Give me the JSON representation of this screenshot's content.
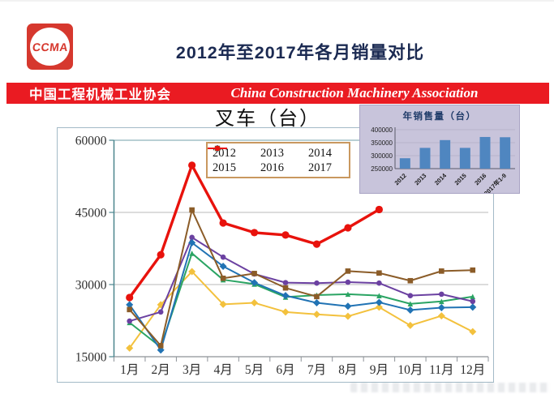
{
  "logo": {
    "text": "CCMA",
    "color": "#d6382e"
  },
  "header": {
    "title": "2012年至2017年各月销量对比",
    "color": "#1b2a52"
  },
  "banner": {
    "bg": "#ea1b22",
    "left_text": "中国工程机械工业协会",
    "right_text": "China Construction Machinery Association"
  },
  "chart_data": [
    {
      "type": "line",
      "title": "叉车（台）",
      "x": [
        "1月",
        "2月",
        "3月",
        "4月",
        "5月",
        "6月",
        "7月",
        "8月",
        "9月",
        "10月",
        "11月",
        "12月"
      ],
      "ylim": [
        15000,
        60000
      ],
      "yticks": [
        15000,
        30000,
        45000,
        60000
      ],
      "grid": true,
      "legend_position": "top-inside",
      "series": [
        {
          "name": "2012",
          "color": "#f3c13d",
          "marker": "diamond",
          "values": [
            16800,
            25800,
            32700,
            25900,
            26200,
            24300,
            23800,
            23400,
            25300,
            21500,
            23500,
            20200
          ]
        },
        {
          "name": "2013",
          "color": "#2aa463",
          "marker": "triangle",
          "values": [
            22100,
            17000,
            36500,
            31000,
            30100,
            27400,
            27800,
            28000,
            27700,
            26000,
            26500,
            27500
          ]
        },
        {
          "name": "2014",
          "color": "#6b41a1",
          "marker": "circle",
          "values": [
            22400,
            24300,
            39800,
            35700,
            32200,
            30400,
            30300,
            30500,
            30300,
            27700,
            28000,
            26500
          ]
        },
        {
          "name": "2015",
          "color": "#2173b4",
          "marker": "diamond",
          "values": [
            25800,
            16400,
            38700,
            33800,
            30400,
            27700,
            26200,
            25500,
            26300,
            24700,
            25200,
            25300
          ]
        },
        {
          "name": "2016",
          "color": "#8b5c28",
          "marker": "square",
          "values": [
            24800,
            17300,
            45500,
            31300,
            32300,
            29300,
            27500,
            32800,
            32400,
            30800,
            32800,
            33000
          ]
        },
        {
          "name": "2017",
          "color": "#e8120c",
          "marker": "circle",
          "values": [
            27300,
            36200,
            54800,
            42800,
            40800,
            40300,
            38400,
            41800,
            45600
          ]
        }
      ]
    },
    {
      "type": "bar",
      "title": "年销售量（台）",
      "categories": [
        "2012",
        "2013",
        "2014",
        "2015",
        "2016",
        "2017年1-9"
      ],
      "values": [
        290000,
        330000,
        360000,
        330000,
        372000,
        371000
      ],
      "ylim": [
        250000,
        400000
      ],
      "yticks": [
        250000,
        300000,
        350000,
        400000
      ],
      "bar_color": "#4f86c0",
      "panel_bg": "#c8c4db"
    }
  ]
}
